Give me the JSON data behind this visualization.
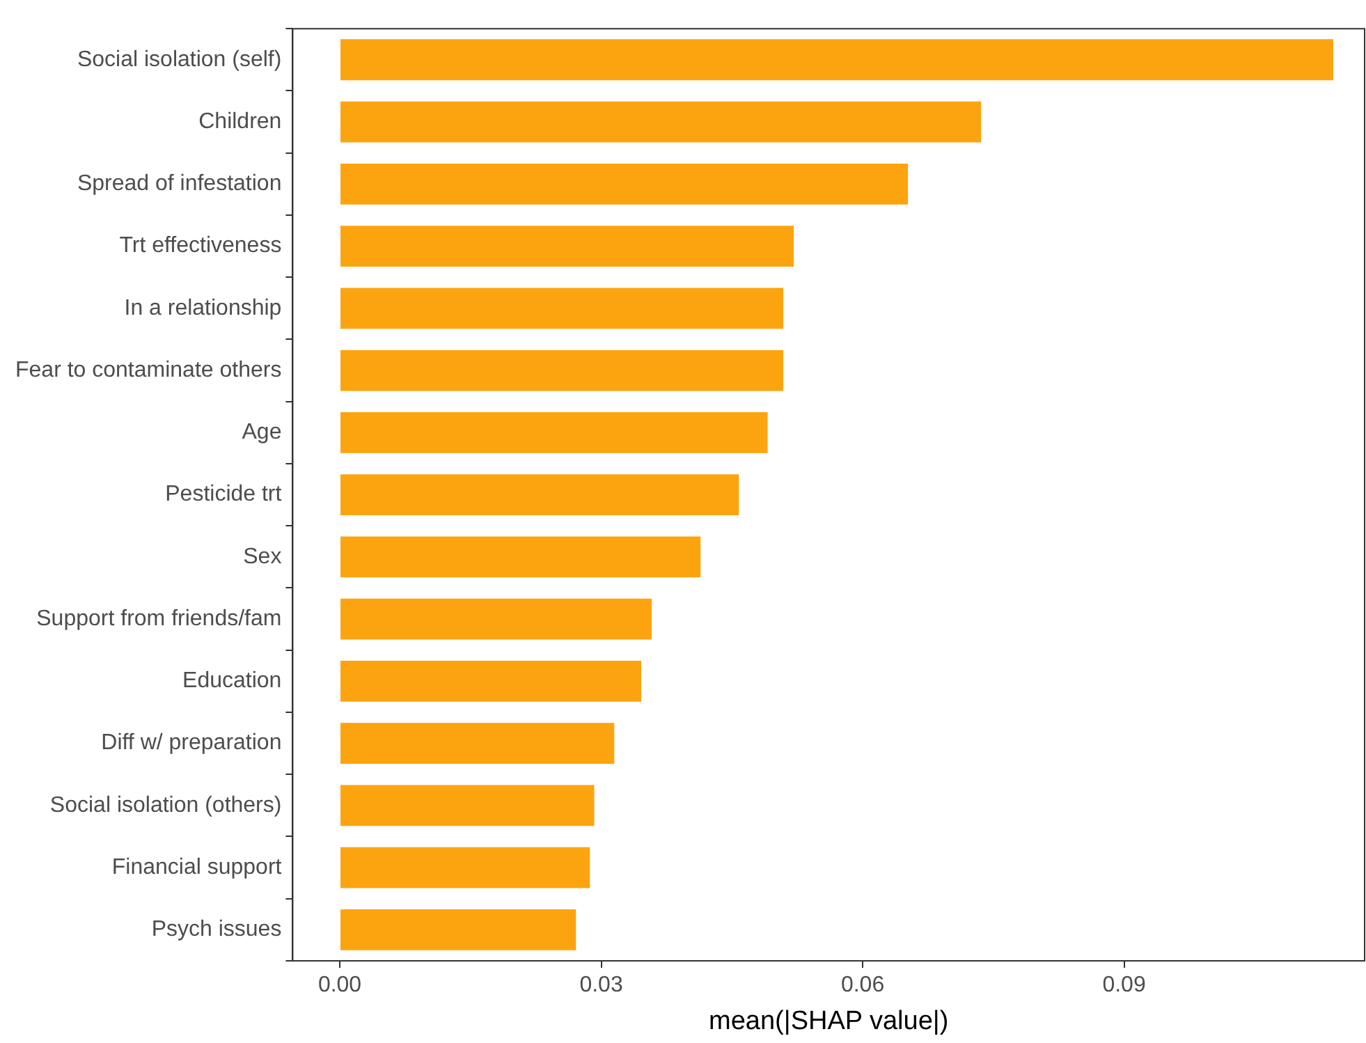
{
  "chart_data": {
    "type": "bar",
    "orientation": "horizontal",
    "xlabel": "mean(|SHAP value|)",
    "categories": [
      "Social isolation (self)",
      "Children",
      "Spread of infestation",
      "Trt effectiveness",
      "In a relationship",
      "Fear to contaminate others",
      "Age",
      "Pesticide trt",
      "Sex",
      "Support from friends/fam",
      "Education",
      "Diff w/ preparation",
      "Social isolation (others)",
      "Financial support",
      "Psych issues"
    ],
    "values": [
      0.114,
      0.0736,
      0.0652,
      0.0521,
      0.0509,
      0.0509,
      0.0491,
      0.0458,
      0.0414,
      0.0358,
      0.0346,
      0.0315,
      0.0292,
      0.0287,
      0.0271
    ],
    "color": "#fca40f",
    "xlim": [
      -0.0054,
      0.1176
    ],
    "xticks": [
      {
        "value": 0,
        "label": "0.00"
      },
      {
        "value": 0.03,
        "label": "0.03"
      },
      {
        "value": 0.06,
        "label": "0.06"
      },
      {
        "value": 0.09,
        "label": "0.09"
      }
    ],
    "grid": false,
    "legend": false
  }
}
